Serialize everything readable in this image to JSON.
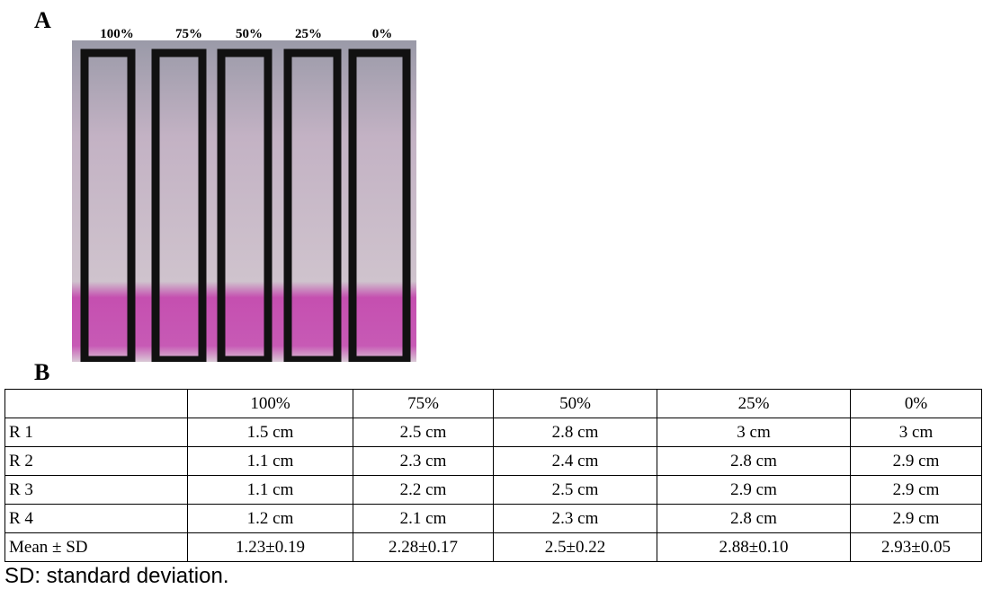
{
  "panel_a": {
    "label": "A",
    "strip_labels": [
      "100%",
      "75%",
      "50%",
      "25%",
      "0%"
    ]
  },
  "panel_b": {
    "label": "B",
    "table": {
      "header": [
        "100%",
        "75%",
        "50%",
        "25%",
        "0%"
      ],
      "rows": [
        [
          "R 1",
          "1.5 cm",
          "2.5 cm",
          "2.8 cm",
          "3 cm",
          "3 cm"
        ],
        [
          "R 2",
          "1.1 cm",
          "2.3 cm",
          "2.4 cm",
          "2.8 cm",
          "2.9 cm"
        ],
        [
          "R 3",
          "1.1 cm",
          "2.2 cm",
          "2.5 cm",
          "2.9 cm",
          "2.9 cm"
        ],
        [
          "R 4",
          "1.2 cm",
          "2.1 cm",
          "2.3 cm",
          "2.8 cm",
          "2.9 cm"
        ],
        [
          "Mean ± SD",
          "1.23±0.19",
          "2.28±0.17",
          "2.5±0.22",
          "2.88±0.10",
          "2.93±0.05"
        ]
      ]
    },
    "footnote": "SD: standard deviation."
  }
}
